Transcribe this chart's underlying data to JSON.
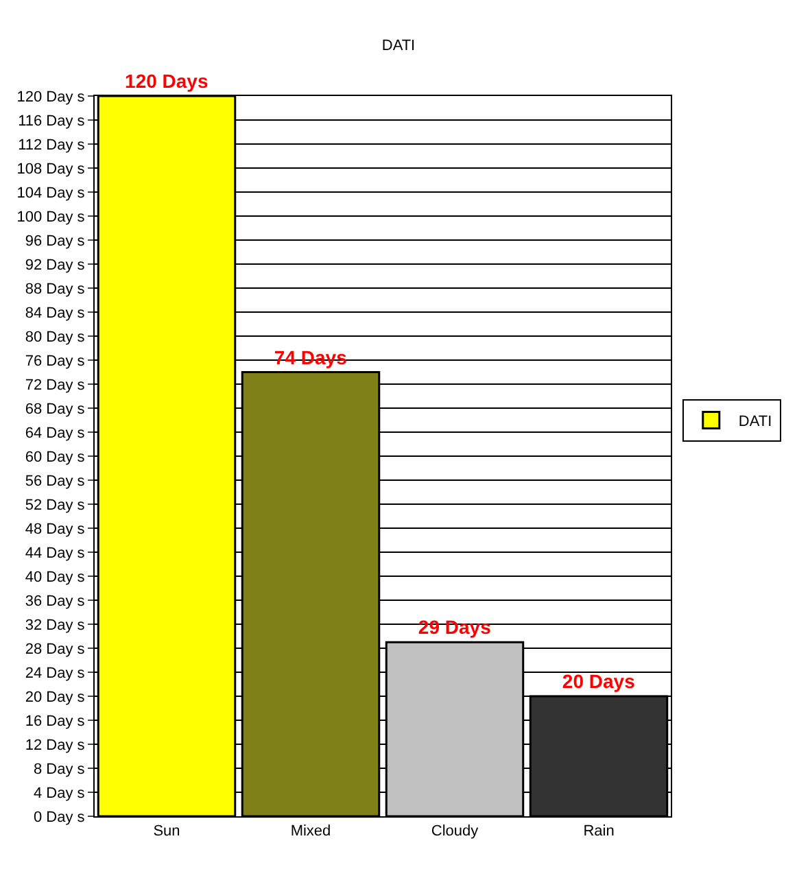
{
  "chart_data": {
    "type": "bar",
    "title": "DATI",
    "categories": [
      "Sun",
      "Mixed",
      "Cloudy",
      "Rain"
    ],
    "series": [
      {
        "name": "DATI",
        "values": [
          120,
          74,
          29,
          20
        ],
        "colors": [
          "#ffff00",
          "#808019",
          "#c0c0c0",
          "#333333"
        ],
        "value_labels": [
          "120 Days",
          "74 Days",
          "29 Days",
          "20 Days"
        ]
      }
    ],
    "ylim": [
      0,
      120
    ],
    "yticks": [
      {
        "value": 0,
        "label": "0 Day s"
      },
      {
        "value": 4,
        "label": "4 Day s"
      },
      {
        "value": 8,
        "label": "8 Day s"
      },
      {
        "value": 12,
        "label": "12 Day s"
      },
      {
        "value": 16,
        "label": "16 Day s"
      },
      {
        "value": 20,
        "label": "20 Day s"
      },
      {
        "value": 24,
        "label": "24 Day s"
      },
      {
        "value": 28,
        "label": "28 Day s"
      },
      {
        "value": 32,
        "label": "32 Day s"
      },
      {
        "value": 36,
        "label": "36 Day s"
      },
      {
        "value": 40,
        "label": "40 Day s"
      },
      {
        "value": 44,
        "label": "44 Day s"
      },
      {
        "value": 48,
        "label": "48 Day s"
      },
      {
        "value": 52,
        "label": "52 Day s"
      },
      {
        "value": 56,
        "label": "56 Day s"
      },
      {
        "value": 60,
        "label": "60 Day s"
      },
      {
        "value": 64,
        "label": "64 Day s"
      },
      {
        "value": 68,
        "label": "68 Day s"
      },
      {
        "value": 72,
        "label": "72 Day s"
      },
      {
        "value": 76,
        "label": "76 Day s"
      },
      {
        "value": 80,
        "label": "80 Day s"
      },
      {
        "value": 84,
        "label": "84 Day s"
      },
      {
        "value": 88,
        "label": "88 Day s"
      },
      {
        "value": 92,
        "label": "92 Day s"
      },
      {
        "value": 96,
        "label": "96 Day s"
      },
      {
        "value": 100,
        "label": "100 Day s"
      },
      {
        "value": 104,
        "label": "104 Day s"
      },
      {
        "value": 108,
        "label": "108 Day s"
      },
      {
        "value": 112,
        "label": "112 Day s"
      },
      {
        "value": 116,
        "label": "116 Day s"
      },
      {
        "value": 120,
        "label": "120 Day s"
      }
    ],
    "grid": "y",
    "legend": "right"
  }
}
